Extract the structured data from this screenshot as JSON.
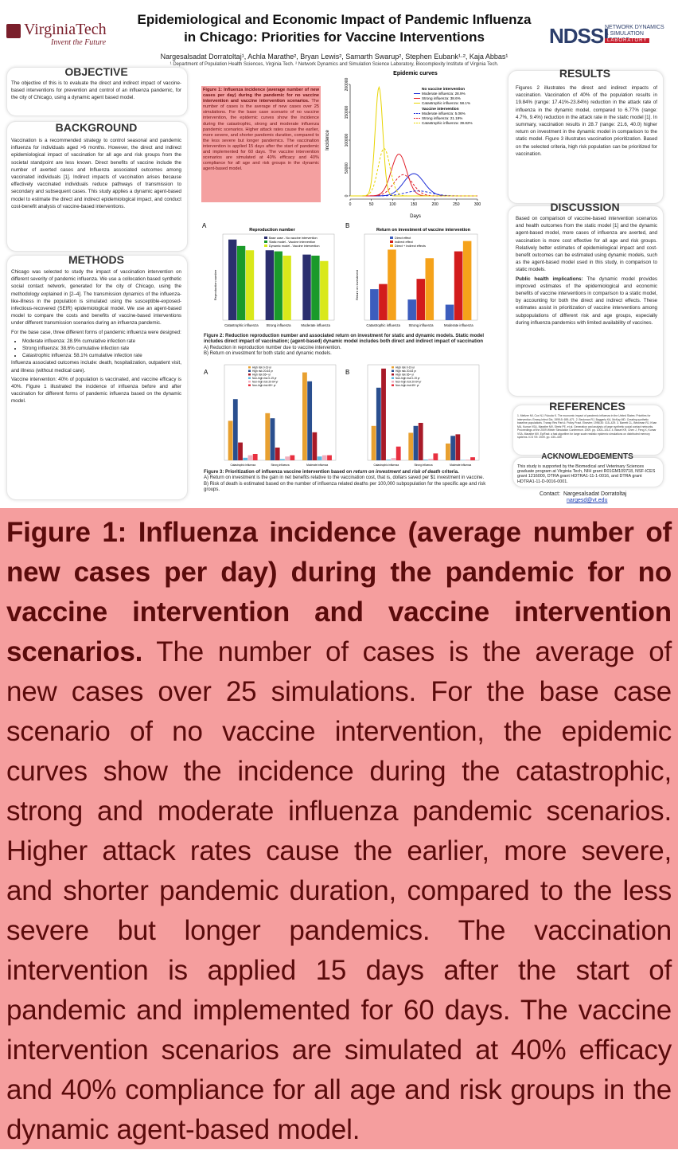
{
  "header": {
    "logo_left_name": "VirginiaTech",
    "logo_left_tagline": "Invent the Future",
    "title_line1": "Epidemiological and Economic Impact of Pandemic Influenza",
    "title_line2": "in Chicago: Priorities for Vaccine Interventions",
    "authors": "Nargesalsadat Dorratoltaj¹, Achla Marathe², Bryan Lewis², Samarth Swarup², Stephen Eubank¹·², Kaja Abbas¹",
    "affiliations": "¹ Department of Population Health Sciences, Virginia Tech. ² Network Dynamics and Simulation Science Laboratory, Biocomplexity Institute of Virginia Tech.",
    "logo_right_text": "NDSSL",
    "logo_right_sub": "NETWORK DYNAMICS & SIMULATION SCIENCE",
    "logo_right_lab": "LABORATORY"
  },
  "objective": {
    "heading": "OBJECTIVE",
    "text": "The objective of this is to evaluate the direct and indirect impact of vaccine-based interventions for prevention and control of an influenza pandemic, for the city of Chicago, using a dynamic agent based model."
  },
  "background": {
    "heading": "BACKGROUND",
    "text": "Vaccination is a recommended strategy to control seasonal and pandemic influenza for individuals aged >6 months. However, the direct and indirect epidemiological impact of vaccination for all age and risk groups from the societal standpoint are less known. Direct benefits of vaccine include the number of averted cases and Influenza associated outcomes among vaccinated individuals [1]. Indirect impacts of vaccination arises because effectively vaccinated individuals reduce pathways of transmission to secondary and subsequent cases. This study applies a dynamic agent-based model to estimate the direct and indirect epidemiological impact, and conduct cost-benefit analysis of vaccine-based interventions."
  },
  "methods": {
    "heading": "METHODS",
    "p1": "Chicago was selected to study the impact of vaccination intervention on different severity of pandemic influenza. We use a collocation based synthetic social contact network, generated for the city of Chicago, using the methodology explained in [2–4]. The transmission dynamics of the influenza-like-illness in the population is simulated using the susceptible-exposed-infectious-recovered (SEIR) epidemiological model. We use an agent-based model to compare the costs and benefits of vaccine-based interventions under different transmission scenarios during an influenza pandemic.",
    "p2": "For the base case, three different forms of pandemic influenza were designed:",
    "items": [
      "Moderate influenza: 28.9% cumulative infection rate",
      "Strong influenza: 38.6% cumulative infection rate",
      "Catastrophic influenza: 58.1% cumulative infection rate"
    ],
    "p3": "Influenza associated outcomes include: death, hospitalization, outpatient visit, and illness (without medical care).",
    "p4": "Vaccine intervention: 40% of population is vaccinated, and vaccine efficacy is 40%. Figure 1 illustrated the incidence of influenza before and after vaccination for different forms of pandemic influenza based on the dynamic model."
  },
  "figure1": {
    "caption_bold": "Figure 1: Influenza incidence (average number of new cases per day) during the pandemic for no vaccine intervention and vaccine intervention scenarios.",
    "caption_rest": " The number of cases is the average of new cases over 25 simulations. For the base case scenario of no vaccine intervention, the epidemic curves show the incidence during the catastrophic, strong and moderate influenza pandemic scenarios. Higher attack rates cause the earlier, more severe, and shorter pandemic duration, compared to the less severe but longer pandemics. The vaccination intervention is applied 15 days after the start of pandemic and implemented for 60 days. The vaccine intervention scenarios are simulated at 40% efficacy and 40% compliance for all age and risk groups in the dynamic agent-based model.",
    "chart_title": "Epidemic curves",
    "ylabel": "Incidence",
    "xlabel": "Days",
    "legend_head1": "No vaccine intervention",
    "legend_head2": "Vaccine intervention",
    "legend": [
      "Moderate influenza: 28.9%",
      "Strong influenza: 38.6%",
      "Catastrophic influenza: 58.1%",
      "Moderate influenza: 5.06%",
      "Strong influenza: 21.19%",
      "Catastrophic influenza: 39.82%"
    ],
    "yticks": [
      "0",
      "50000",
      "100000",
      "150000",
      "200000"
    ],
    "xticks": [
      "0",
      "50",
      "100",
      "150",
      "200",
      "250",
      "300"
    ]
  },
  "figure2": {
    "caption_bold": "Figure 2: Reduction reproduction number and associated return on investment for static and dynamic models. Static model includes direct impact of vaccination; (agent-based) dynamic model includes both direct and indirect impact of vaccination",
    "caption_a": "A) Reduction in reproduction number due to vaccine intervention.",
    "caption_b": "B) Return on investment for both static and dynamic models.",
    "panel_a_label": "A",
    "panel_b_label": "B",
    "title_a": "Reproduction number",
    "title_b": "Return on investment of vaccine intervention",
    "ylabel_a": "Reproduction number",
    "ylabel_b": "Return on investment",
    "legend_a": [
      "Base case - No vaccine intervention",
      "Static model - Vaccine intervention",
      "Dynamic model - Vaccine intervention"
    ],
    "legend_b": [
      "Direct effect",
      "Indirect effect",
      "Direct + Indirect effects"
    ],
    "categories": [
      "Catastrophic influenza",
      "Strong influenza",
      "Moderate influenza"
    ]
  },
  "figure3": {
    "caption_bold": "Figure 3: Prioritization of influenza vaccine intervention based on",
    "caption_roi": "return on investment",
    "caption_and": "and",
    "caption_risk": "risk of death",
    "caption_end": "criteria.",
    "caption_a": "A) Return on investment is the gain in net benefits relative to the vaccination cost, that is, dollars saved per $1 investment in vaccine.",
    "caption_b": "B) Risk of death is estimated based on the number of influenza related deaths per 100,000 subpopulation for the specific age and risk groups.",
    "panel_a_label": "A",
    "panel_b_label": "B",
    "categories": [
      "Catastrophic influenza",
      "Strong influenza",
      "Moderate influenza"
    ],
    "legend": [
      "High risk 0-19 yr",
      "High risk 20-64 yr",
      "High risk 65+ yr",
      "Non-high risk 0-19 yr",
      "Non-high risk 20-64 yr",
      "Non-high risk 65+ yr"
    ]
  },
  "results": {
    "heading": "RESULTS",
    "text": "Figures 2 illustrates the direct and indirect impacts of vaccination. Vaccination of 40% of the population results in 19.84% (range: 17.41%-23.84%) reduction in the attack rate of influenza in the dynamic model, compared to 6.77% (range: 4.7%, 9.4%) reduction in the attack rate in the static model [1]. In summary, vaccination results in 28.7 (range: 21.6, 40.0) higher return on investment in the dynamic model in comparison to the static model. Figure 3 illustrates vaccination prioritization. Based on the selected criteria, high risk population can be prioritized for vaccination."
  },
  "discussion": {
    "heading": "DISCUSSION",
    "text": "Based on comparison of vaccine-based intervention scenarios and health outcomes from the static model [1] and the dynamic agent-based model, more cases of influenza are averted, and vaccination is more cost effective for all age and risk groups. Relatively better estimates of epidemiological impact and cost-benefit outcomes can be estimated using dynamic models, such as the agent-based model used in this study, in comparison to static models.",
    "implications_label": "Public health implications:",
    "implications_text": " The dynamic model provides improved estimates of the epidemiological and economic benefits of vaccine interventions in comparison to a static model, by accounting for both the direct and indirect effects. These estimates assist in prioritization of vaccine interventions among subpopulations of different risk and age groups, especially during influenza pandemics with limited availability of vaccines."
  },
  "references": {
    "heading": "REFERENCES",
    "text": "1. Meltzer MI, Cox NJ, Fukuda K. The economic impact of pandemic influenza in the United States: Priorities for intervention. Emerg Infect Dis. 1999;5: 659–671. 2. Beckman RJ, Baggerly KA, McKay MD. Creating synthetic baseline populations. Transp Res Part A: Policy Pract. Elsevier; 1996;30: 415–429. 3. Barrett CL, Beckman RJ, Khan MA, Kumar VSA, Marathe MV, Stretz PE, et al. Generation and analysis of large synthetic social contact networks. Proceedings of the 2009 Winter Simulation Conference. 2009. pp. 1003–1014. 4. Bisset KR, Chen J, Feng X, Kumar VSA, Marathe MV. EpiFast: a fast algorithm for large scale realistic epidemic simulations on distributed memory systems. ICS '09. 2009. pp. 430–439."
  },
  "acknowledgements": {
    "heading": "ACKNOWLEDGEMENTS",
    "text": "This study is supported by the Biomedical and Veterinary Sciences graduate program at Virginia Tech, NIH grant R01GM109718, NSF-ICES grant 1216000, DTRA grant HDTRA1-11-1-0016, and DTRA grant HDTRA1-11-D-0016-0001.",
    "contact_label": "Contact:",
    "contact_name": "Nargesalsadat Dorratoltaj",
    "contact_email": "nargesd@vt.edu"
  },
  "zoom": {
    "caption_bold": "Figure 1: Influenza incidence (average number of new cases per day) during the pandemic for no vaccine intervention and vaccine intervention scenarios.",
    "caption_rest": " The number of cases is the average of new cases over 25 simulations. For the base case scenario of no vaccine intervention, the epidemic curves show the incidence during the catastrophic, strong and moderate influenza pandemic scenarios. Higher attack rates cause the earlier, more severe, and shorter pandemic duration, compared to the less severe but longer pandemics. The vaccination intervention is applied 15 days after the start of pandemic and implemented for 60 days. The vaccine intervention scenarios are simulated at 40% efficacy and 40% compliance for all age and risk groups in the dynamic agent-based model."
  },
  "colors": {
    "poster_bg": "#ffffff",
    "zoom_bg": "#f59e9e",
    "zoom_text": "#5a0b0b",
    "vt_maroon": "#7a1f2b",
    "ndssl_blue": "#2c3e6b",
    "moderate": "#1f2fd6",
    "strong": "#e0202a",
    "catastrophic": "#e8d400"
  }
}
